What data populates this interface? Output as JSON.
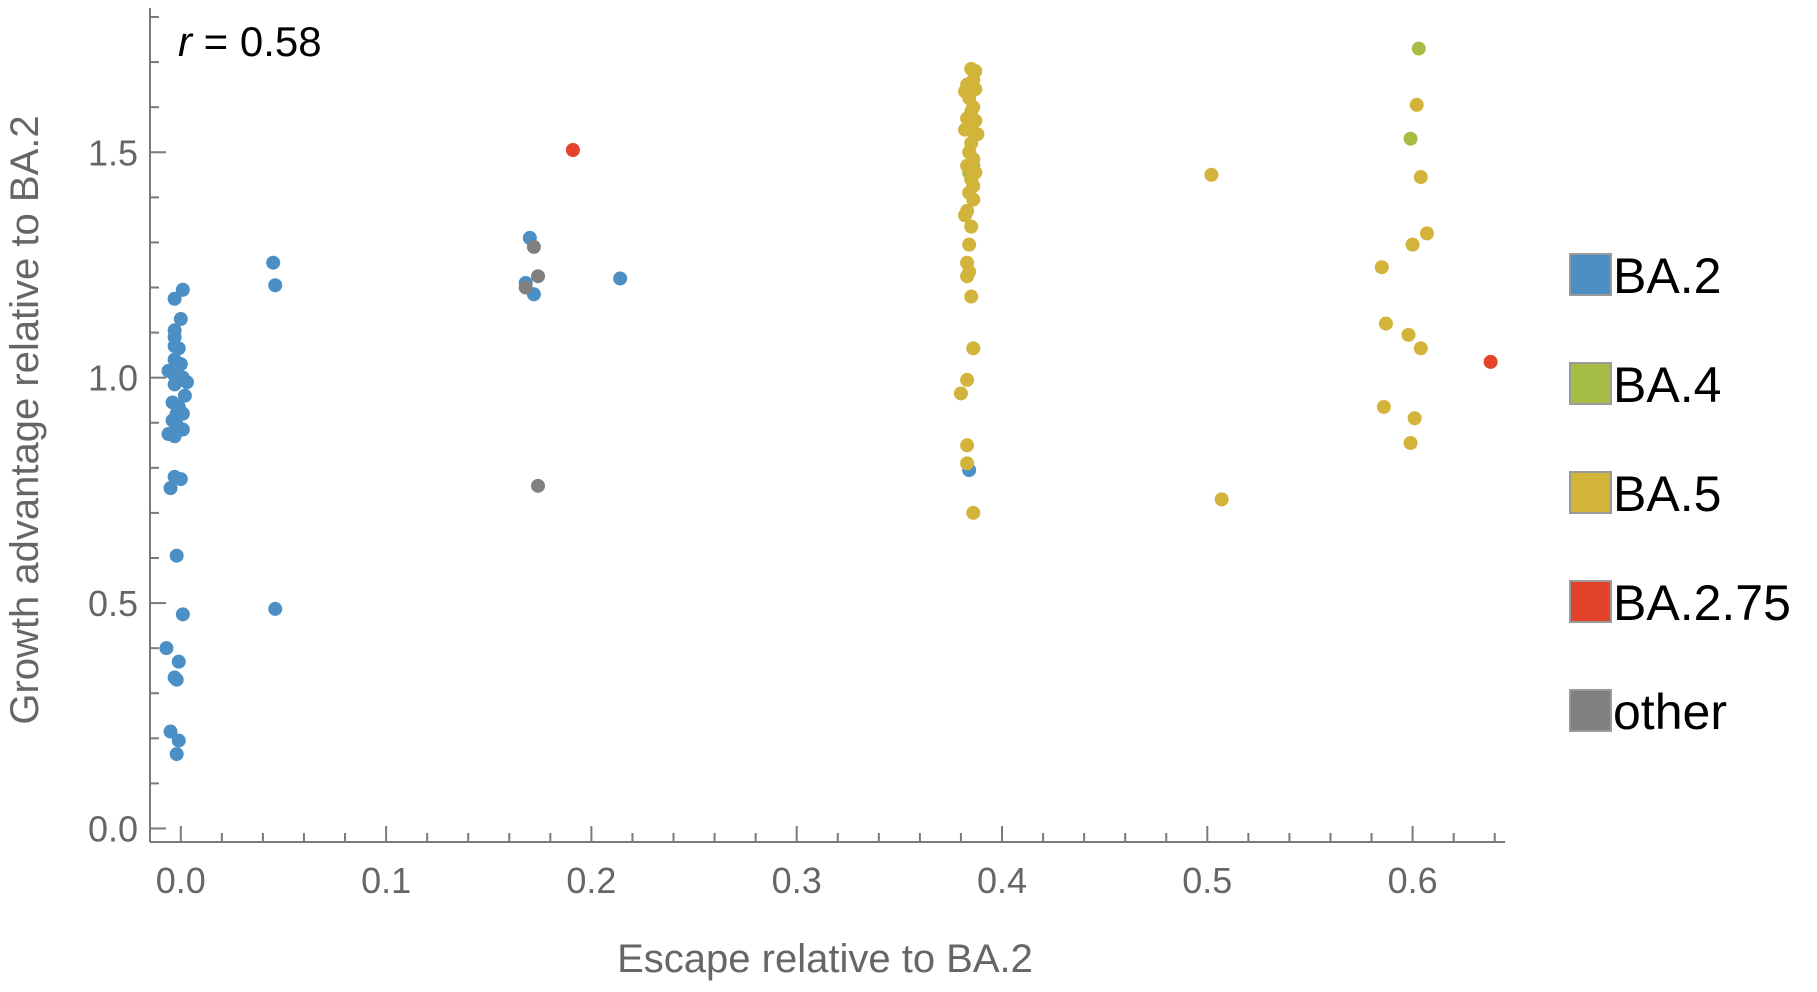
{
  "chart_data": {
    "type": "scatter",
    "title": "",
    "annotation": {
      "symbol": "r",
      "text": " = 0.58"
    },
    "xlabel": "Escape relative to BA.2",
    "ylabel": "Growth advantage relative to BA.2",
    "xlim": [
      -0.015,
      0.645
    ],
    "ylim": [
      -0.03,
      1.82
    ],
    "xticks": [
      0.0,
      0.1,
      0.2,
      0.3,
      0.4,
      0.5,
      0.6
    ],
    "xtick_labels": [
      "0.0",
      "0.1",
      "0.2",
      "0.3",
      "0.4",
      "0.5",
      "0.6"
    ],
    "yticks": [
      0.0,
      0.5,
      1.0,
      1.5
    ],
    "ytick_labels": [
      "0.0",
      "0.5",
      "1.0",
      "1.5"
    ],
    "grid": false,
    "legend_position": "right",
    "series": [
      {
        "name": "BA.2",
        "color": "#4c8fc4",
        "points": [
          [
            -0.003,
            1.175
          ],
          [
            0.001,
            1.195
          ],
          [
            0.0,
            1.13
          ],
          [
            -0.003,
            1.105
          ],
          [
            -0.003,
            1.09
          ],
          [
            -0.003,
            1.07
          ],
          [
            -0.001,
            1.065
          ],
          [
            -0.003,
            1.04
          ],
          [
            0.0,
            1.03
          ],
          [
            -0.006,
            1.015
          ],
          [
            -0.003,
            1.005
          ],
          [
            -0.001,
            0.995
          ],
          [
            0.001,
            1.0
          ],
          [
            0.003,
            0.99
          ],
          [
            -0.003,
            0.985
          ],
          [
            0.002,
            0.96
          ],
          [
            -0.004,
            0.945
          ],
          [
            -0.001,
            0.935
          ],
          [
            -0.002,
            0.92
          ],
          [
            0.001,
            0.92
          ],
          [
            -0.004,
            0.905
          ],
          [
            -0.002,
            0.895
          ],
          [
            -0.006,
            0.875
          ],
          [
            -0.003,
            0.87
          ],
          [
            0.001,
            0.885
          ],
          [
            -0.003,
            0.78
          ],
          [
            0.0,
            0.775
          ],
          [
            -0.005,
            0.755
          ],
          [
            -0.002,
            0.605
          ],
          [
            0.001,
            0.475
          ],
          [
            -0.007,
            0.4
          ],
          [
            -0.001,
            0.37
          ],
          [
            -0.003,
            0.335
          ],
          [
            -0.002,
            0.33
          ],
          [
            -0.005,
            0.215
          ],
          [
            -0.001,
            0.195
          ],
          [
            -0.002,
            0.165
          ],
          [
            0.045,
            1.255
          ],
          [
            0.046,
            1.205
          ],
          [
            0.046,
            0.487
          ],
          [
            0.17,
            1.31
          ],
          [
            0.168,
            1.21
          ],
          [
            0.172,
            1.185
          ],
          [
            0.214,
            1.22
          ],
          [
            0.384,
            0.795
          ]
        ]
      },
      {
        "name": "BA.4",
        "color": "#a5bd45",
        "points": [
          [
            0.385,
            1.44
          ],
          [
            0.386,
            1.47
          ],
          [
            0.384,
            1.455
          ],
          [
            0.603,
            1.73
          ],
          [
            0.599,
            1.53
          ]
        ]
      },
      {
        "name": "BA.5",
        "color": "#d3b43a",
        "points": [
          [
            0.385,
            1.685
          ],
          [
            0.387,
            1.68
          ],
          [
            0.386,
            1.66
          ],
          [
            0.383,
            1.65
          ],
          [
            0.382,
            1.635
          ],
          [
            0.387,
            1.64
          ],
          [
            0.384,
            1.62
          ],
          [
            0.386,
            1.6
          ],
          [
            0.385,
            1.59
          ],
          [
            0.383,
            1.575
          ],
          [
            0.387,
            1.57
          ],
          [
            0.384,
            1.56
          ],
          [
            0.382,
            1.55
          ],
          [
            0.386,
            1.545
          ],
          [
            0.388,
            1.54
          ],
          [
            0.385,
            1.52
          ],
          [
            0.384,
            1.5
          ],
          [
            0.386,
            1.485
          ],
          [
            0.383,
            1.47
          ],
          [
            0.387,
            1.455
          ],
          [
            0.385,
            1.44
          ],
          [
            0.386,
            1.425
          ],
          [
            0.384,
            1.41
          ],
          [
            0.386,
            1.395
          ],
          [
            0.383,
            1.37
          ],
          [
            0.382,
            1.36
          ],
          [
            0.385,
            1.335
          ],
          [
            0.384,
            1.295
          ],
          [
            0.383,
            1.255
          ],
          [
            0.384,
            1.235
          ],
          [
            0.383,
            1.225
          ],
          [
            0.385,
            1.18
          ],
          [
            0.386,
            1.065
          ],
          [
            0.383,
            0.995
          ],
          [
            0.38,
            0.965
          ],
          [
            0.383,
            0.85
          ],
          [
            0.383,
            0.81
          ],
          [
            0.386,
            0.7
          ],
          [
            0.502,
            1.45
          ],
          [
            0.507,
            0.73
          ],
          [
            0.602,
            1.605
          ],
          [
            0.604,
            1.445
          ],
          [
            0.607,
            1.32
          ],
          [
            0.6,
            1.295
          ],
          [
            0.585,
            1.245
          ],
          [
            0.587,
            1.12
          ],
          [
            0.598,
            1.095
          ],
          [
            0.604,
            1.065
          ],
          [
            0.586,
            0.935
          ],
          [
            0.601,
            0.91
          ],
          [
            0.599,
            0.855
          ]
        ]
      },
      {
        "name": "BA.2.75",
        "color": "#e2432a",
        "points": [
          [
            0.191,
            1.505
          ],
          [
            0.638,
            1.035
          ]
        ]
      },
      {
        "name": "other",
        "color": "#808080",
        "points": [
          [
            0.172,
            1.29
          ],
          [
            0.174,
            1.225
          ],
          [
            0.168,
            1.2
          ],
          [
            0.174,
            0.76
          ]
        ]
      }
    ]
  }
}
